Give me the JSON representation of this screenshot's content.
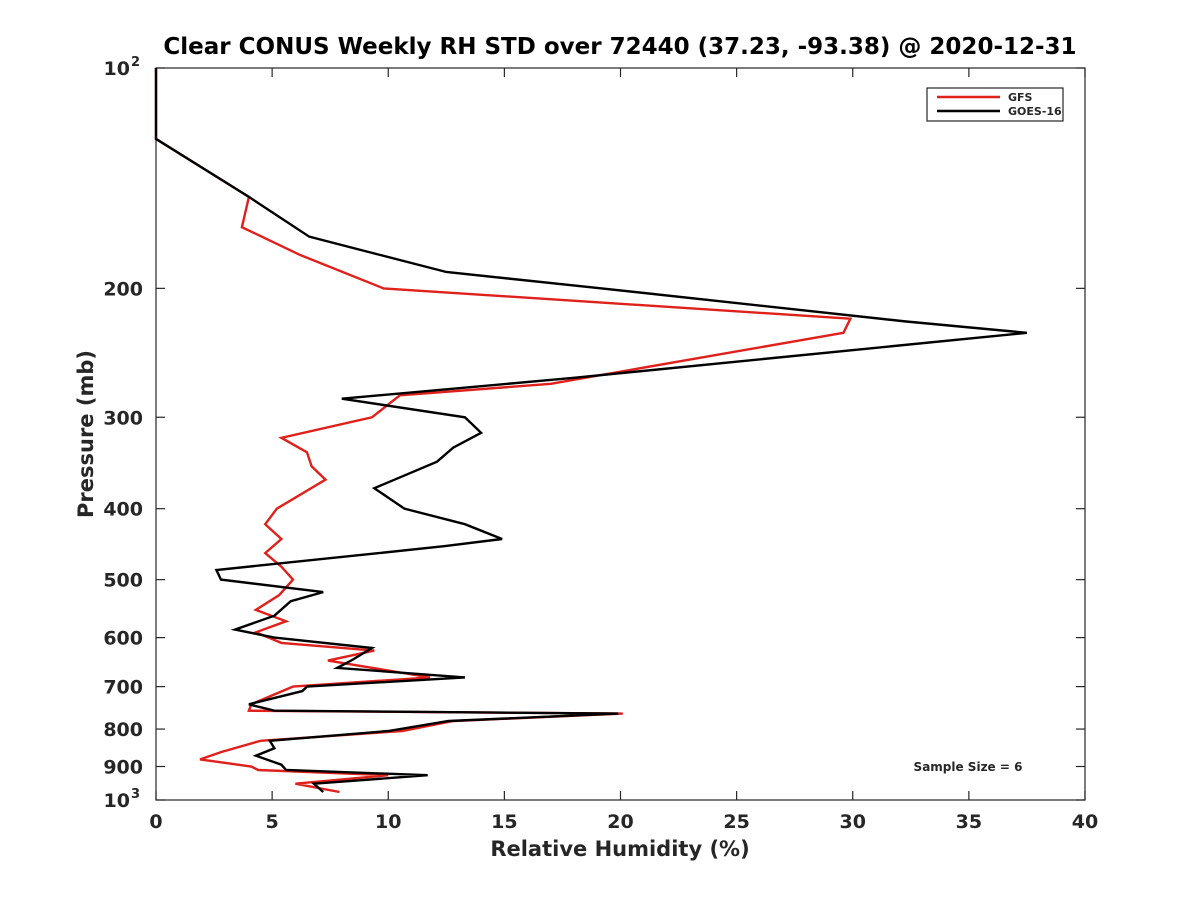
{
  "chart_data": {
    "type": "line",
    "title": "Clear CONUS Weekly RH STD over 72440 (37.23, -93.38) @ 2020-12-31",
    "xlabel": "Relative Humidity (%)",
    "ylabel": "Pressure (mb)",
    "xlim": [
      0,
      40
    ],
    "ylim": [
      100,
      1000
    ],
    "yscale": "log",
    "y_reversed": true,
    "x_ticks": [
      "0",
      "5",
      "10",
      "15",
      "20",
      "25",
      "30",
      "35",
      "40"
    ],
    "y_ticks": [
      {
        "value": 100,
        "base": "10",
        "exp": "2"
      },
      {
        "value": 200,
        "label": "200"
      },
      {
        "value": 300,
        "label": "300"
      },
      {
        "value": 400,
        "label": "400"
      },
      {
        "value": 500,
        "label": "500"
      },
      {
        "value": 600,
        "label": "600"
      },
      {
        "value": 700,
        "label": "700"
      },
      {
        "value": 800,
        "label": "800"
      },
      {
        "value": 900,
        "label": "900"
      },
      {
        "value": 1000,
        "base": "10",
        "exp": "3"
      }
    ],
    "grid": false,
    "legend": {
      "position": "top-right"
    },
    "annotation": "Sample Size = 6",
    "series": [
      {
        "name": "GFS",
        "color": "#e0201b",
        "points": [
          [
            0.0,
            100
          ],
          [
            0.0,
            125
          ],
          [
            4.0,
            150
          ],
          [
            3.7,
            165
          ],
          [
            6.2,
            180
          ],
          [
            9.8,
            200
          ],
          [
            29.9,
            220
          ],
          [
            29.6,
            230
          ],
          [
            17.0,
            270
          ],
          [
            10.5,
            280
          ],
          [
            9.3,
            300
          ],
          [
            5.4,
            320
          ],
          [
            6.5,
            335
          ],
          [
            6.7,
            350
          ],
          [
            7.3,
            365
          ],
          [
            5.2,
            400
          ],
          [
            4.7,
            420
          ],
          [
            5.4,
            440
          ],
          [
            4.7,
            460
          ],
          [
            5.4,
            480
          ],
          [
            5.9,
            500
          ],
          [
            5.3,
            525
          ],
          [
            4.3,
            550
          ],
          [
            5.6,
            570
          ],
          [
            4.3,
            590
          ],
          [
            5.4,
            610
          ],
          [
            9.4,
            625
          ],
          [
            7.4,
            645
          ],
          [
            11.8,
            680
          ],
          [
            5.9,
            700
          ],
          [
            4.1,
            740
          ],
          [
            4.0,
            755
          ],
          [
            20.1,
            762
          ],
          [
            12.8,
            780
          ],
          [
            10.6,
            805
          ],
          [
            4.5,
            830
          ],
          [
            2.8,
            860
          ],
          [
            1.9,
            880
          ],
          [
            4.1,
            900
          ],
          [
            4.4,
            910
          ],
          [
            10.0,
            925
          ],
          [
            6.0,
            950
          ],
          [
            7.9,
            975
          ]
        ]
      },
      {
        "name": "GOES-16",
        "color": "#000000",
        "points": [
          [
            0.0,
            100
          ],
          [
            0.0,
            125
          ],
          [
            4.0,
            150
          ],
          [
            6.6,
            170
          ],
          [
            12.5,
            190
          ],
          [
            19.2,
            200
          ],
          [
            32.3,
            222
          ],
          [
            37.5,
            230
          ],
          [
            18.0,
            265
          ],
          [
            8.0,
            283
          ],
          [
            13.3,
            300
          ],
          [
            14.0,
            315
          ],
          [
            12.8,
            330
          ],
          [
            12.1,
            345
          ],
          [
            9.4,
            375
          ],
          [
            10.7,
            400
          ],
          [
            13.3,
            420
          ],
          [
            14.9,
            440
          ],
          [
            12.4,
            450
          ],
          [
            9.6,
            460
          ],
          [
            2.6,
            485
          ],
          [
            2.8,
            500
          ],
          [
            7.2,
            520
          ],
          [
            5.8,
            535
          ],
          [
            5.1,
            560
          ],
          [
            3.4,
            585
          ],
          [
            5.1,
            600
          ],
          [
            9.3,
            620
          ],
          [
            8.4,
            645
          ],
          [
            7.8,
            660
          ],
          [
            13.3,
            680
          ],
          [
            6.5,
            700
          ],
          [
            6.3,
            710
          ],
          [
            4.0,
            740
          ],
          [
            5.1,
            755
          ],
          [
            19.9,
            762
          ],
          [
            12.6,
            780
          ],
          [
            10.0,
            805
          ],
          [
            4.9,
            830
          ],
          [
            5.1,
            850
          ],
          [
            4.3,
            870
          ],
          [
            5.4,
            895
          ],
          [
            5.6,
            910
          ],
          [
            11.7,
            925
          ],
          [
            6.8,
            950
          ],
          [
            7.2,
            975
          ]
        ]
      }
    ]
  }
}
